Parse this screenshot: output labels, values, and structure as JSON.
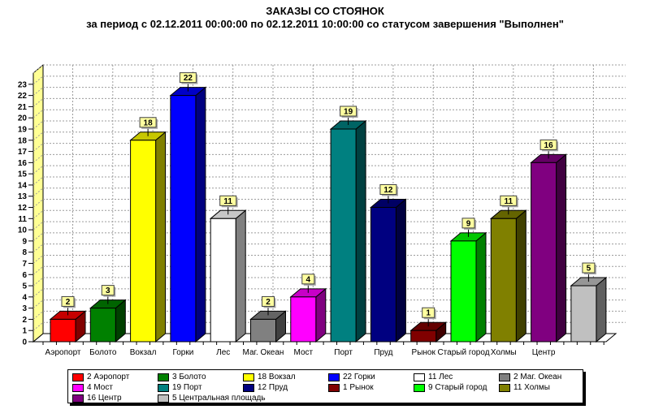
{
  "chart_data": {
    "type": "bar",
    "style": "3d-bar",
    "title": "ЗАКАЗЫ СО СТОЯНОК",
    "subtitle": "за период с 02.12.2011 00:00:00 по 02.12.2011 10:00:00 со статусом завершения \"Выполнен\"",
    "categories": [
      "Аэропорт",
      "Болото",
      "Вокзал",
      "Горки",
      "Лес",
      "Маг. Океан",
      "Мост",
      "Порт",
      "Пруд",
      "Рынок",
      "Старый город",
      "Холмы",
      "Центр",
      "Центральная площадь"
    ],
    "values": [
      2,
      3,
      18,
      22,
      11,
      2,
      4,
      19,
      12,
      1,
      9,
      11,
      16,
      5
    ],
    "bar_colors": [
      "#FF0000",
      "#008000",
      "#FFFF00",
      "#0000FF",
      "#FFFFFF",
      "#808080",
      "#FF00FF",
      "#008080",
      "#000080",
      "#800000",
      "#00FF00",
      "#808000",
      "#800080",
      "#C0C0C0"
    ],
    "x_tick_labels": [
      "Аэропорт",
      "Болото",
      "Вокзал",
      "Горки",
      "Лес",
      "Маг. Океан",
      "Мост",
      "Порт",
      "Пруд",
      "Рынок",
      "Старый город",
      "Холмы",
      "Центр",
      ""
    ],
    "xlabel": "",
    "ylabel": "",
    "ylim": [
      0,
      24
    ],
    "ytick_min": 0,
    "ytick_max": 23,
    "ytick_step": 1,
    "grid": true,
    "legend_position": "bottom",
    "legend_entries": [
      "2 Аэропорт",
      "3 Болото",
      "18 Вокзал",
      "22 Горки",
      "11 Лес",
      "2 Маг. Океан",
      "4 Мост",
      "19 Порт",
      "12 Пруд",
      "1 Рынок",
      "9 Старый город",
      "11 Холмы",
      "16 Центр",
      "5 Центральная площадь"
    ],
    "colors": {
      "background": "#FFFFFF",
      "wall": "#FFFF94",
      "floor": "#FFFFFF",
      "grid": "#9C9C9C",
      "axis": "#000000",
      "mark_fill": "#FFFFA0",
      "mark_border": "#404040",
      "mark_shadow": "#A8A8A8",
      "legend_shadow": "#000000"
    }
  }
}
